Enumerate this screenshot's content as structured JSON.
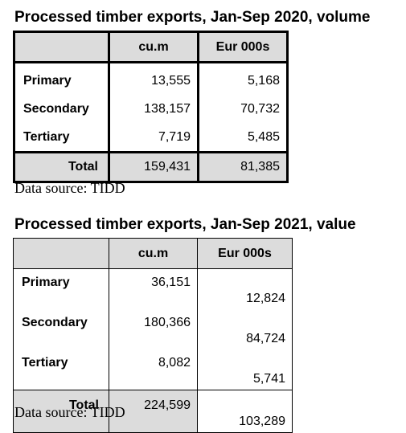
{
  "tables": [
    {
      "title": "Processed timber exports, Jan-Sep 2020, volume",
      "headers": [
        "",
        "cu.m",
        "Eur 000s"
      ],
      "rows": [
        {
          "label": "Primary",
          "cum": "13,555",
          "eur": "5,168"
        },
        {
          "label": "Secondary",
          "cum": "138,157",
          "eur": "70,732"
        },
        {
          "label": "Tertiary",
          "cum": "7,719",
          "eur": "5,485"
        }
      ],
      "total": {
        "label": "Total",
        "cum": "159,431",
        "eur": "81,385"
      },
      "source": "Data source: TIDD"
    },
    {
      "title": "Processed timber exports, Jan-Sep 2021, value",
      "headers": [
        "",
        "cu.m",
        "Eur 000s"
      ],
      "rows": [
        {
          "label": "Primary",
          "cum": "36,151",
          "eur": "12,824"
        },
        {
          "label": "Secondary",
          "cum": "180,366",
          "eur": "84,724"
        },
        {
          "label": "Tertiary",
          "cum": "8,082",
          "eur": "5,741"
        }
      ],
      "total": {
        "label": "Total",
        "cum": "224,599",
        "eur": "103,289"
      },
      "source": "Data source: TIDD"
    }
  ]
}
